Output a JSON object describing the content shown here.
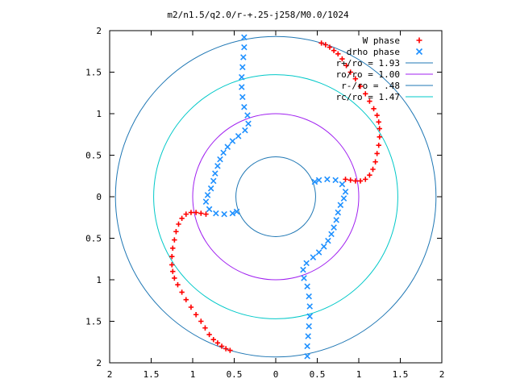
{
  "chart_data": {
    "type": "scatter",
    "title": "m2/n1.5/q2.0/r-+.25-j258/M0.0/1024",
    "xlim": [
      -2,
      2
    ],
    "ylim": [
      -2,
      2
    ],
    "x_tick_labels": [
      "2",
      "1.5",
      "1",
      "0.5",
      "0",
      "0.5",
      "1",
      "1.5",
      "2"
    ],
    "y_tick_labels": [
      "2",
      "1.5",
      "1",
      "0.5",
      "0",
      "0.5",
      "1",
      "1.5",
      "2"
    ],
    "grid": false,
    "legend_position": "top-right",
    "circles": [
      {
        "name": "r+/ro = 1.93",
        "radius": 1.93,
        "color": "#1f77b4"
      },
      {
        "name": "ro/ro = 1.00",
        "radius": 1.0,
        "color": "#a020f0"
      },
      {
        "name": "r-/ro = .48",
        "radius": 0.48,
        "color": "#1f77b4"
      },
      {
        "name": "rc/ro = 1.47",
        "radius": 1.47,
        "color": "#00c8c8"
      }
    ],
    "series": [
      {
        "name": "W phase",
        "marker": "+",
        "color": "#ff0000",
        "arms": [
          {
            "points": [
              [
                0.55,
                1.85
              ],
              [
                0.6,
                1.83
              ],
              [
                0.65,
                1.8
              ],
              [
                0.7,
                1.76
              ],
              [
                0.75,
                1.72
              ],
              [
                0.8,
                1.66
              ],
              [
                0.85,
                1.58
              ],
              [
                0.9,
                1.5
              ],
              [
                0.96,
                1.42
              ],
              [
                1.02,
                1.33
              ],
              [
                1.08,
                1.24
              ],
              [
                1.13,
                1.15
              ],
              [
                1.18,
                1.06
              ],
              [
                1.22,
                0.98
              ],
              [
                1.24,
                0.9
              ],
              [
                1.25,
                0.82
              ],
              [
                1.25,
                0.72
              ],
              [
                1.24,
                0.62
              ],
              [
                1.22,
                0.52
              ],
              [
                1.2,
                0.42
              ],
              [
                1.17,
                0.33
              ],
              [
                1.13,
                0.26
              ],
              [
                1.08,
                0.21
              ],
              [
                1.02,
                0.19
              ],
              [
                0.96,
                0.19
              ],
              [
                0.9,
                0.2
              ],
              [
                0.84,
                0.21
              ]
            ]
          },
          {
            "points": [
              [
                -0.55,
                -1.85
              ],
              [
                -0.6,
                -1.83
              ],
              [
                -0.65,
                -1.8
              ],
              [
                -0.7,
                -1.76
              ],
              [
                -0.75,
                -1.72
              ],
              [
                -0.8,
                -1.66
              ],
              [
                -0.85,
                -1.58
              ],
              [
                -0.9,
                -1.5
              ],
              [
                -0.96,
                -1.42
              ],
              [
                -1.02,
                -1.33
              ],
              [
                -1.08,
                -1.24
              ],
              [
                -1.13,
                -1.15
              ],
              [
                -1.18,
                -1.06
              ],
              [
                -1.22,
                -0.98
              ],
              [
                -1.24,
                -0.9
              ],
              [
                -1.25,
                -0.82
              ],
              [
                -1.25,
                -0.72
              ],
              [
                -1.24,
                -0.62
              ],
              [
                -1.22,
                -0.52
              ],
              [
                -1.2,
                -0.42
              ],
              [
                -1.17,
                -0.33
              ],
              [
                -1.13,
                -0.26
              ],
              [
                -1.08,
                -0.21
              ],
              [
                -1.02,
                -0.19
              ],
              [
                -0.96,
                -0.19
              ],
              [
                -0.9,
                -0.2
              ],
              [
                -0.84,
                -0.21
              ]
            ]
          }
        ]
      },
      {
        "name": "drho phase",
        "marker": "x",
        "color": "#1e90ff",
        "arms": [
          {
            "points": [
              [
                -0.38,
                1.92
              ],
              [
                -0.38,
                1.8
              ],
              [
                -0.39,
                1.68
              ],
              [
                -0.4,
                1.56
              ],
              [
                -0.41,
                1.44
              ],
              [
                -0.41,
                1.32
              ],
              [
                -0.4,
                1.2
              ],
              [
                -0.38,
                1.08
              ],
              [
                -0.34,
                0.98
              ],
              [
                -0.33,
                0.88
              ],
              [
                -0.37,
                0.8
              ],
              [
                -0.45,
                0.73
              ],
              [
                -0.52,
                0.67
              ],
              [
                -0.58,
                0.6
              ],
              [
                -0.63,
                0.53
              ],
              [
                -0.67,
                0.45
              ],
              [
                -0.7,
                0.37
              ],
              [
                -0.73,
                0.28
              ],
              [
                -0.75,
                0.19
              ],
              [
                -0.78,
                0.1
              ],
              [
                -0.82,
                0.02
              ],
              [
                -0.84,
                -0.06
              ],
              [
                -0.8,
                -0.15
              ],
              [
                -0.72,
                -0.2
              ],
              [
                -0.62,
                -0.21
              ],
              [
                -0.52,
                -0.2
              ],
              [
                -0.47,
                -0.18
              ]
            ]
          },
          {
            "points": [
              [
                0.38,
                -1.92
              ],
              [
                0.38,
                -1.8
              ],
              [
                0.39,
                -1.68
              ],
              [
                0.4,
                -1.56
              ],
              [
                0.41,
                -1.44
              ],
              [
                0.41,
                -1.32
              ],
              [
                0.4,
                -1.2
              ],
              [
                0.38,
                -1.08
              ],
              [
                0.34,
                -0.98
              ],
              [
                0.33,
                -0.88
              ],
              [
                0.37,
                -0.8
              ],
              [
                0.45,
                -0.73
              ],
              [
                0.52,
                -0.67
              ],
              [
                0.58,
                -0.6
              ],
              [
                0.63,
                -0.53
              ],
              [
                0.67,
                -0.45
              ],
              [
                0.7,
                -0.37
              ],
              [
                0.73,
                -0.28
              ],
              [
                0.75,
                -0.19
              ],
              [
                0.78,
                -0.1
              ],
              [
                0.82,
                -0.02
              ],
              [
                0.84,
                0.06
              ],
              [
                0.8,
                0.15
              ],
              [
                0.72,
                0.2
              ],
              [
                0.62,
                0.21
              ],
              [
                0.52,
                0.2
              ],
              [
                0.47,
                0.18
              ]
            ]
          }
        ]
      }
    ]
  }
}
